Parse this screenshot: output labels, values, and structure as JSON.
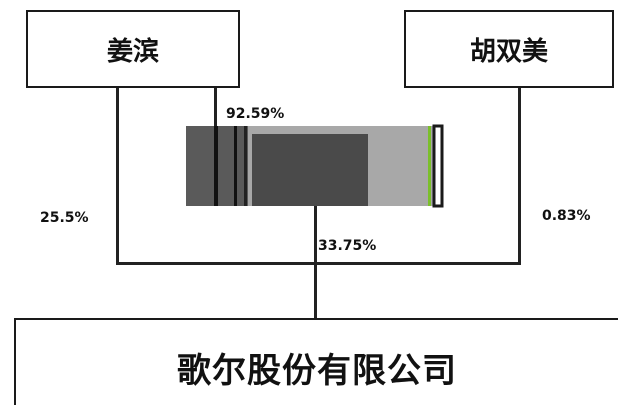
{
  "entities": {
    "left": {
      "name": "姜滨"
    },
    "right": {
      "name": "胡双美"
    },
    "bottom": {
      "name": "歌尔股份有限公司"
    }
  },
  "percentages": {
    "left_stake": "25.5%",
    "right_stake": "0.83%",
    "top_stake": "92.59%",
    "middle_stake": "33.75%"
  },
  "colors": {
    "border": "#1a1a1a",
    "line": "#222222",
    "middle_bar_dark": "#4a4a4a",
    "middle_bar_light": "#a8a8a8",
    "accent_green": "#7bbf2a"
  }
}
